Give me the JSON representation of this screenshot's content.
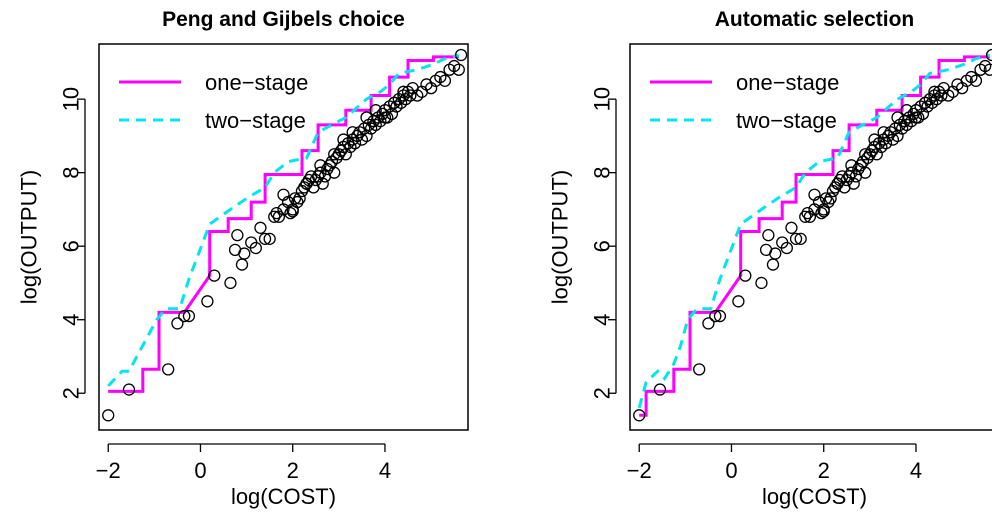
{
  "chart_data": [
    {
      "type": "scatter",
      "title": "Peng and Gijbels choice",
      "xlabel": "log(COST)",
      "ylabel": "log(OUTPUT)",
      "xlim": [
        -2.2,
        5.8
      ],
      "ylim": [
        1.0,
        11.5
      ],
      "x_ticks": [
        -2,
        0,
        2,
        4
      ],
      "x_tick_labels": [
        "−2",
        "0",
        "2",
        "4"
      ],
      "y_ticks": [
        2,
        4,
        6,
        8,
        10
      ],
      "y_tick_labels": [
        "2",
        "4",
        "6",
        "8",
        "10"
      ],
      "legend": {
        "placement": "top-left",
        "entries": [
          {
            "label": "one−stage",
            "color": "#ff00ff",
            "style": "solid"
          },
          {
            "label": "two−stage",
            "color": "#00e5ee",
            "style": "dashed"
          }
        ]
      },
      "series": [
        {
          "name": "one−stage",
          "color": "#ff00ff",
          "style": "solid",
          "x": [
            -2.0,
            -1.55,
            -1.55,
            -1.25,
            -1.25,
            -0.9,
            -0.9,
            -0.35,
            -0.35,
            0.2,
            0.2,
            0.6,
            0.6,
            1.1,
            1.1,
            1.4,
            1.4,
            2.2,
            2.2,
            2.55,
            2.55,
            3.15,
            3.15,
            3.7,
            3.7,
            4.1,
            4.1,
            4.5,
            4.5,
            5.05,
            5.05,
            5.6
          ],
          "y": [
            2.05,
            2.05,
            2.05,
            2.05,
            2.65,
            2.65,
            4.2,
            4.2,
            4.2,
            5.2,
            6.4,
            6.4,
            6.75,
            6.75,
            7.2,
            7.2,
            7.95,
            7.95,
            8.6,
            8.6,
            9.3,
            9.3,
            9.7,
            9.7,
            10.1,
            10.1,
            10.6,
            10.6,
            11.05,
            11.05,
            11.15,
            11.15
          ]
        },
        {
          "name": "two−stage",
          "color": "#00e5ee",
          "style": "dashed",
          "x": [
            -2.0,
            -1.7,
            -1.55,
            -1.25,
            -0.95,
            -0.75,
            -0.45,
            -0.25,
            0.2,
            0.65,
            1.0,
            1.4,
            1.6,
            1.9,
            2.3,
            2.55,
            3.15,
            3.6,
            3.9,
            4.1,
            4.3,
            4.7,
            5.05,
            5.3,
            5.6
          ],
          "y": [
            2.2,
            2.6,
            2.6,
            3.3,
            4.0,
            4.3,
            4.3,
            5.1,
            6.6,
            7.0,
            7.3,
            7.6,
            8.0,
            8.3,
            8.4,
            9.1,
            9.5,
            10.0,
            10.2,
            10.4,
            10.7,
            10.8,
            10.95,
            11.1,
            11.2
          ]
        },
        {
          "name": "",
          "marker": "open-circle",
          "color": "#000000",
          "x": [
            -2.0,
            -1.55,
            -0.7,
            -0.5,
            -0.35,
            -0.25,
            0.15,
            0.3,
            0.65,
            0.75,
            0.8,
            0.9,
            0.95,
            1.1,
            1.2,
            1.3,
            1.4,
            1.5,
            1.6,
            1.65,
            1.7,
            1.8,
            1.9,
            1.95,
            2.0,
            2.05,
            2.1,
            2.15,
            2.2,
            2.25,
            2.3,
            2.35,
            2.4,
            2.45,
            2.5,
            2.55,
            2.6,
            2.65,
            2.7,
            2.75,
            2.8,
            2.85,
            2.9,
            2.95,
            3.0,
            3.05,
            3.1,
            3.15,
            3.2,
            3.25,
            3.3,
            3.35,
            3.4,
            3.45,
            3.5,
            3.55,
            3.6,
            3.65,
            3.7,
            3.75,
            3.8,
            3.85,
            3.9,
            3.95,
            4.0,
            4.05,
            4.1,
            4.15,
            4.2,
            4.25,
            4.3,
            4.35,
            4.4,
            4.45,
            4.5,
            4.55,
            4.6,
            4.7,
            4.8,
            4.9,
            5.0,
            5.1,
            5.2,
            5.3,
            5.4,
            5.5,
            5.6,
            5.65,
            2.6,
            2.9,
            3.1,
            3.3,
            3.6,
            3.8,
            4.0,
            4.2,
            4.4,
            2.3,
            2.0,
            1.8
          ],
          "y": [
            1.4,
            2.1,
            2.65,
            3.9,
            4.1,
            4.1,
            4.5,
            5.2,
            5.0,
            5.9,
            6.3,
            5.5,
            5.8,
            6.1,
            5.95,
            6.5,
            6.2,
            6.2,
            6.8,
            6.9,
            6.8,
            7.0,
            7.2,
            6.9,
            7.0,
            7.3,
            7.2,
            7.3,
            7.5,
            7.6,
            7.7,
            7.8,
            7.9,
            7.6,
            7.8,
            7.9,
            8.0,
            7.7,
            7.9,
            8.1,
            8.2,
            8.3,
            8.0,
            8.4,
            8.5,
            8.6,
            8.7,
            8.5,
            8.8,
            8.7,
            8.9,
            8.8,
            9.0,
            9.1,
            8.9,
            9.2,
            9.0,
            9.3,
            9.2,
            9.4,
            9.3,
            9.5,
            9.4,
            9.6,
            9.7,
            9.5,
            9.8,
            9.6,
            9.9,
            9.8,
            10.0,
            9.9,
            10.1,
            10.0,
            10.2,
            10.1,
            10.3,
            10.1,
            10.2,
            10.4,
            10.3,
            10.5,
            10.6,
            10.5,
            10.8,
            10.9,
            10.8,
            11.2,
            8.2,
            8.5,
            8.9,
            9.1,
            9.5,
            9.7,
            9.5,
            9.9,
            10.2,
            7.7,
            6.95,
            7.4
          ]
        }
      ]
    },
    {
      "type": "scatter",
      "title": "Automatic selection",
      "xlabel": "log(COST)",
      "ylabel": "log(OUTPUT)",
      "xlim": [
        -2.2,
        5.8
      ],
      "ylim": [
        1.0,
        11.5
      ],
      "x_ticks": [
        -2,
        0,
        2,
        4
      ],
      "x_tick_labels": [
        "−2",
        "0",
        "2",
        "4"
      ],
      "y_ticks": [
        2,
        4,
        6,
        8,
        10
      ],
      "y_tick_labels": [
        "2",
        "4",
        "6",
        "8",
        "10"
      ],
      "legend": {
        "placement": "top-left",
        "entries": [
          {
            "label": "one−stage",
            "color": "#ff00ff",
            "style": "solid"
          },
          {
            "label": "two−stage",
            "color": "#00e5ee",
            "style": "dashed"
          }
        ]
      },
      "series": [
        {
          "name": "one−stage",
          "color": "#ff00ff",
          "style": "solid",
          "x": [
            -2.0,
            -1.85,
            -1.85,
            -1.55,
            -1.55,
            -1.25,
            -1.25,
            -0.9,
            -0.9,
            -0.35,
            -0.35,
            0.2,
            0.2,
            0.6,
            0.6,
            1.1,
            1.1,
            1.4,
            1.4,
            2.2,
            2.2,
            2.55,
            2.55,
            3.15,
            3.15,
            3.7,
            3.7,
            4.1,
            4.1,
            4.5,
            4.5,
            5.05,
            5.05,
            5.6
          ],
          "y": [
            1.4,
            1.4,
            2.05,
            2.05,
            2.05,
            2.05,
            2.65,
            2.65,
            4.2,
            4.2,
            4.2,
            5.2,
            6.4,
            6.4,
            6.75,
            6.75,
            7.2,
            7.2,
            7.95,
            7.95,
            8.6,
            8.6,
            9.3,
            9.3,
            9.7,
            9.7,
            10.1,
            10.1,
            10.6,
            10.6,
            11.05,
            11.05,
            11.15,
            11.15
          ]
        },
        {
          "name": "two−stage",
          "color": "#00e5ee",
          "style": "dashed",
          "x": [
            -2.0,
            -1.85,
            -1.6,
            -1.45,
            -1.25,
            -1.1,
            -0.95,
            -0.75,
            -0.45,
            -0.25,
            0.2,
            0.65,
            1.0,
            1.4,
            1.6,
            1.9,
            2.3,
            2.55,
            3.15,
            3.6,
            3.9,
            4.1,
            4.3,
            4.7,
            5.05,
            5.3,
            5.6
          ],
          "y": [
            1.6,
            2.3,
            2.6,
            2.4,
            2.8,
            3.3,
            4.0,
            4.3,
            4.3,
            5.1,
            6.6,
            7.0,
            7.3,
            7.6,
            8.0,
            8.3,
            8.4,
            9.1,
            9.5,
            10.0,
            10.2,
            10.4,
            10.7,
            10.8,
            10.95,
            11.1,
            11.2
          ]
        },
        {
          "name": "",
          "marker": "open-circle",
          "color": "#000000",
          "x": [
            -2.0,
            -1.55,
            -0.7,
            -0.5,
            -0.35,
            -0.25,
            0.15,
            0.3,
            0.65,
            0.75,
            0.8,
            0.9,
            0.95,
            1.1,
            1.2,
            1.3,
            1.4,
            1.5,
            1.6,
            1.65,
            1.7,
            1.8,
            1.9,
            1.95,
            2.0,
            2.05,
            2.1,
            2.15,
            2.2,
            2.25,
            2.3,
            2.35,
            2.4,
            2.45,
            2.5,
            2.55,
            2.6,
            2.65,
            2.7,
            2.75,
            2.8,
            2.85,
            2.9,
            2.95,
            3.0,
            3.05,
            3.1,
            3.15,
            3.2,
            3.25,
            3.3,
            3.35,
            3.4,
            3.45,
            3.5,
            3.55,
            3.6,
            3.65,
            3.7,
            3.75,
            3.8,
            3.85,
            3.9,
            3.95,
            4.0,
            4.05,
            4.1,
            4.15,
            4.2,
            4.25,
            4.3,
            4.35,
            4.4,
            4.45,
            4.5,
            4.55,
            4.6,
            4.7,
            4.8,
            4.9,
            5.0,
            5.1,
            5.2,
            5.3,
            5.4,
            5.5,
            5.6,
            5.65,
            2.6,
            2.9,
            3.1,
            3.3,
            3.6,
            3.8,
            4.0,
            4.2,
            4.4,
            2.3,
            2.0,
            1.8
          ],
          "y": [
            1.4,
            2.1,
            2.65,
            3.9,
            4.1,
            4.1,
            4.5,
            5.2,
            5.0,
            5.9,
            6.3,
            5.5,
            5.8,
            6.1,
            5.95,
            6.5,
            6.2,
            6.2,
            6.8,
            6.9,
            6.8,
            7.0,
            7.2,
            6.9,
            7.0,
            7.3,
            7.2,
            7.3,
            7.5,
            7.6,
            7.7,
            7.8,
            7.9,
            7.6,
            7.8,
            7.9,
            8.0,
            7.7,
            7.9,
            8.1,
            8.2,
            8.3,
            8.0,
            8.4,
            8.5,
            8.6,
            8.7,
            8.5,
            8.8,
            8.7,
            8.9,
            8.8,
            9.0,
            9.1,
            8.9,
            9.2,
            9.0,
            9.3,
            9.2,
            9.4,
            9.3,
            9.5,
            9.4,
            9.6,
            9.7,
            9.5,
            9.8,
            9.6,
            9.9,
            9.8,
            10.0,
            9.9,
            10.1,
            10.0,
            10.2,
            10.1,
            10.3,
            10.1,
            10.2,
            10.4,
            10.3,
            10.5,
            10.6,
            10.5,
            10.8,
            10.9,
            10.8,
            11.2,
            8.2,
            8.5,
            8.9,
            9.1,
            9.5,
            9.7,
            9.5,
            9.9,
            10.2,
            7.7,
            6.95,
            7.4
          ]
        }
      ]
    }
  ]
}
